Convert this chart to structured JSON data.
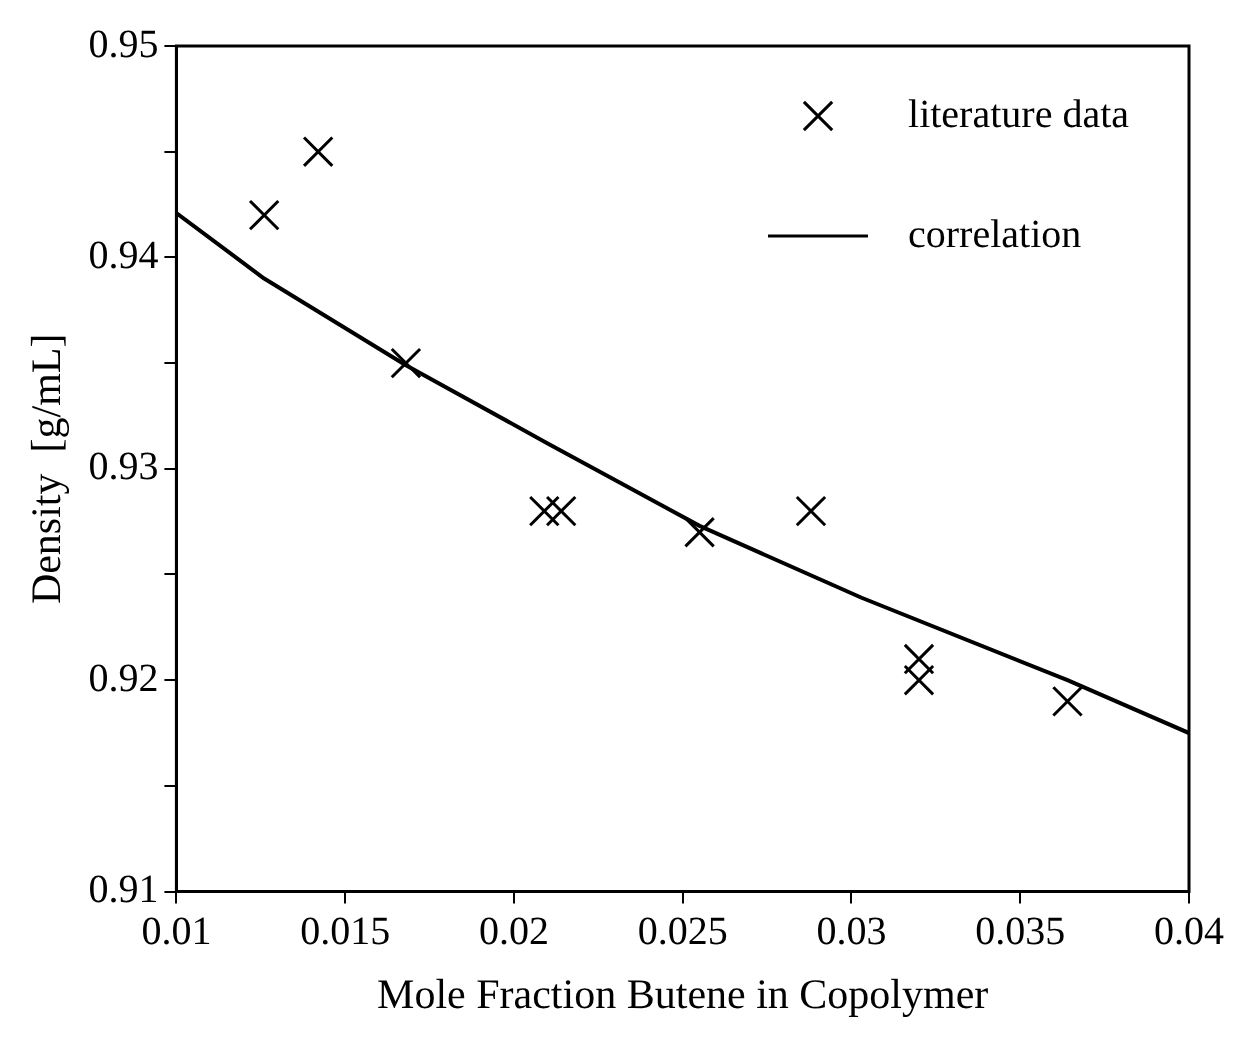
{
  "chart_data": {
    "type": "scatter",
    "xlabel": "Mole Fraction Butene in Copolymer",
    "ylabel": "Density  [g/mL]",
    "xlim": [
      0.01,
      0.04
    ],
    "xticks": [
      0.01,
      0.015,
      0.02,
      0.025,
      0.03,
      0.035,
      0.04
    ],
    "ylim": [
      0.91,
      0.95
    ],
    "yticks": [
      0.91,
      {
        "value": 0.915,
        "label": null
      },
      0.92,
      {
        "value": 0.925,
        "label": null
      },
      0.93,
      {
        "value": 0.935,
        "label": null
      },
      0.94,
      {
        "value": 0.945,
        "label": null
      },
      0.95
    ],
    "grid": false,
    "legend": "top right",
    "series": [
      {
        "name": "literature data",
        "type": "scatter",
        "marker": "cross",
        "color": "#000000",
        "x": [
          0.0126,
          0.0142,
          0.0168,
          0.0209,
          0.0214,
          0.0255,
          0.0288,
          0.032,
          0.032,
          0.0364
        ],
        "values": [
          0.942,
          0.945,
          0.935,
          0.928,
          0.928,
          0.927,
          0.928,
          0.921,
          0.92,
          0.919
        ]
      },
      {
        "name": "correlation",
        "type": "line",
        "marker": "none",
        "line_style": "solid",
        "color": "#000000",
        "x": [
          0.01,
          0.0126,
          0.0168,
          0.021,
          0.0255,
          0.0303,
          0.0364,
          0.04
        ],
        "values": [
          0.9421,
          0.939,
          0.9349,
          0.9312,
          0.9273,
          0.9239,
          0.92,
          0.9175
        ]
      }
    ]
  }
}
